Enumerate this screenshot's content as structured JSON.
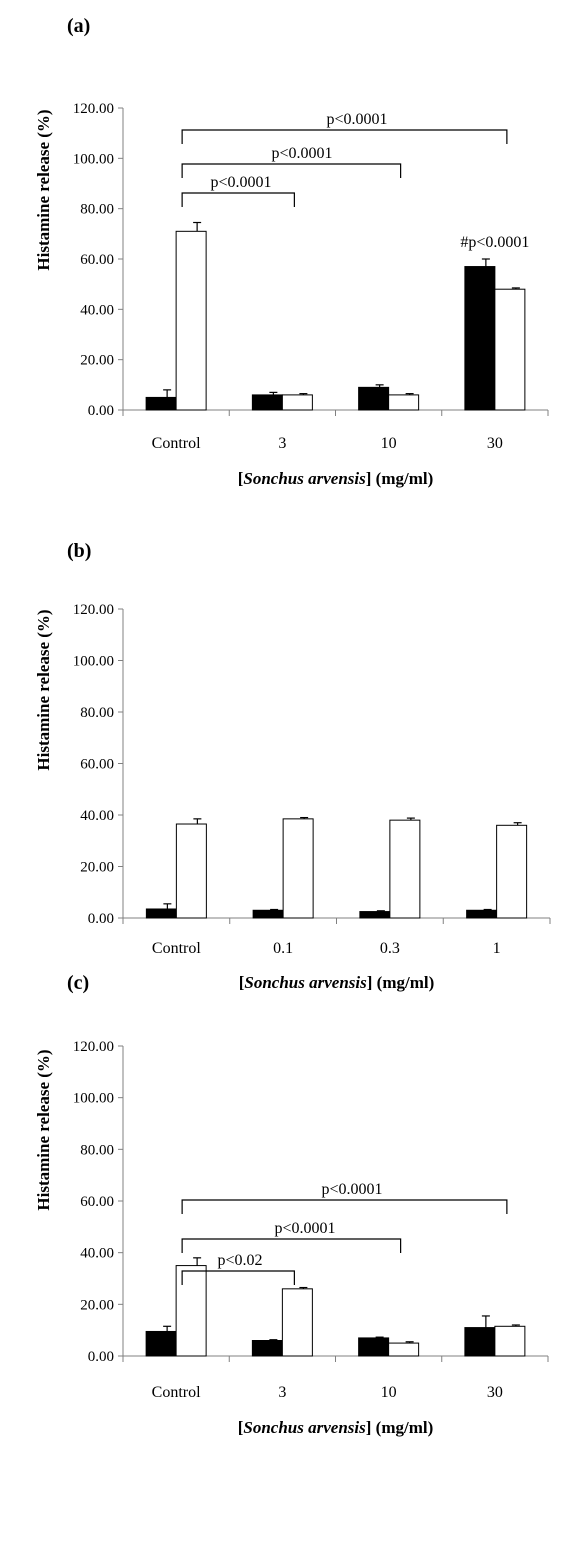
{
  "chart_data": [
    {
      "type": "bar",
      "panel_label": "(a)",
      "categories": [
        "Control",
        "3",
        "10",
        "30"
      ],
      "series": [
        {
          "values": [
            5.0,
            6.0,
            9.0,
            57.0
          ],
          "errors": [
            3.0,
            1.0,
            1.0,
            3.0
          ],
          "color": "#000000"
        },
        {
          "values": [
            71.0,
            6.0,
            6.0,
            48.0
          ],
          "errors": [
            3.5,
            0.5,
            0.5,
            0.5
          ],
          "color": "#ffffff"
        }
      ],
      "ylabel": "Histamine release (%)",
      "xlabel_prefix": "[",
      "xlabel_italic": "Sonchus arvensis",
      "xlabel_suffix": "] (mg/ml)",
      "ylim": [
        0,
        120
      ],
      "yticks": [
        "0.00",
        "20.00",
        "40.00",
        "60.00",
        "80.00",
        "100.00",
        "120.00"
      ],
      "annotations": [
        {
          "type": "bracket",
          "from": "Control",
          "to": "3",
          "text": "p<0.0001"
        },
        {
          "type": "bracket",
          "from": "Control",
          "to": "10",
          "text": "p<0.0001"
        },
        {
          "type": "bracket",
          "from": "Control",
          "to": "30",
          "text": "p<0.0001"
        },
        {
          "type": "label",
          "category": "30",
          "text": "#p<0.0001"
        }
      ]
    },
    {
      "type": "bar",
      "panel_label": "(b)",
      "categories": [
        "Control",
        "0.1",
        "0.3",
        "1"
      ],
      "series": [
        {
          "values": [
            3.5,
            3.0,
            2.5,
            3.0
          ],
          "errors": [
            2.0,
            0.3,
            0.3,
            0.3
          ],
          "color": "#000000"
        },
        {
          "values": [
            36.5,
            38.5,
            38.0,
            36.0
          ],
          "errors": [
            2.0,
            0.5,
            0.8,
            1.0
          ],
          "color": "#ffffff"
        }
      ],
      "ylabel": "Histamine release (%)",
      "xlabel_prefix": "[",
      "xlabel_italic": "Sonchus arvensis",
      "xlabel_suffix": "] (mg/ml)",
      "ylim": [
        0,
        120
      ],
      "yticks": [
        "0.00",
        "20.00",
        "40.00",
        "60.00",
        "80.00",
        "100.00",
        "120.00"
      ],
      "annotations": []
    },
    {
      "type": "bar",
      "panel_label": "(c)",
      "categories": [
        "Control",
        "3",
        "10",
        "30"
      ],
      "series": [
        {
          "values": [
            9.5,
            6.0,
            7.0,
            11.0
          ],
          "errors": [
            2.0,
            0.3,
            0.3,
            4.5
          ],
          "color": "#000000"
        },
        {
          "values": [
            35.0,
            26.0,
            5.0,
            11.5
          ],
          "errors": [
            3.0,
            0.5,
            0.5,
            0.5
          ],
          "color": "#ffffff"
        }
      ],
      "ylabel": "Histamine release (%)",
      "xlabel_prefix": "[",
      "xlabel_italic": "Sonchus arvensis",
      "xlabel_suffix": "] (mg/ml)",
      "ylim": [
        0,
        120
      ],
      "yticks": [
        "0.00",
        "20.00",
        "40.00",
        "60.00",
        "80.00",
        "100.00",
        "120.00"
      ],
      "annotations": [
        {
          "type": "bracket",
          "from": "Control",
          "to": "3",
          "text": "p<0.02"
        },
        {
          "type": "bracket",
          "from": "Control",
          "to": "10",
          "text": "p<0.0001"
        },
        {
          "type": "bracket",
          "from": "Control",
          "to": "30",
          "text": "p<0.0001"
        }
      ]
    }
  ]
}
